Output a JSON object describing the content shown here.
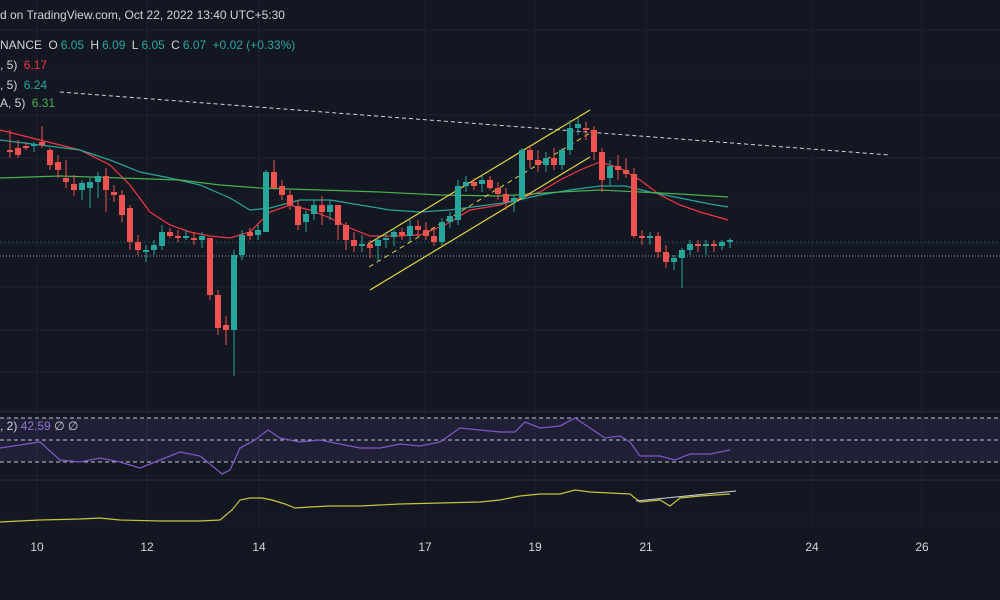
{
  "header": {
    "source": "d on TradingView.com, Oct 22, 2022 13:40 UTC+5:30",
    "symbol_tail": "NANCE",
    "o_label": "O",
    "o_value": "6.05",
    "h_label": "H",
    "h_value": "6.09",
    "l_label": "L",
    "l_value": "6.05",
    "c_label": "C",
    "c_value": "6.07",
    "change": "+0.02 (+0.33%)"
  },
  "indicators": [
    {
      "label": ", 5)",
      "value": "6.17",
      "color": "#f23645"
    },
    {
      "label": ", 5)",
      "value": "6.24",
      "color": "#26a69a"
    },
    {
      "label": "A, 5)",
      "value": "6.31",
      "color": "#4caf50"
    }
  ],
  "rsi_header": {
    "label": ", 2)",
    "value": "42.59",
    "extra1": "∅",
    "extra2": "∅"
  },
  "colors": {
    "background": "#131722",
    "up": "#26a69a",
    "down": "#ef5350",
    "ma_fast": "#f23645",
    "ma_mid": "#26a69a",
    "ma_slow": "#4caf50",
    "channel": "#e5d53b",
    "rsi_line": "#7e57c2",
    "lower_line": "#c9c33b"
  },
  "chart_data": {
    "type": "candlestick",
    "x_ticks": [
      "10",
      "12",
      "14",
      "17",
      "19",
      "21",
      "24",
      "26"
    ],
    "ohlc_last": {
      "open": 6.05,
      "high": 6.09,
      "low": 6.05,
      "close": 6.07
    },
    "moving_averages": [
      {
        "name": "MA 5 (red)",
        "last": 6.17
      },
      {
        "name": "MA 5 (teal)",
        "last": 6.24
      },
      {
        "name": "MA 5 (green)",
        "last": 6.31
      }
    ],
    "rsi_last": 42.59,
    "candles": [
      [
        10,
        150,
        130,
        158,
        150
      ],
      [
        18,
        148,
        140,
        158,
        155
      ],
      [
        26,
        146,
        142,
        150,
        148
      ],
      [
        34,
        146,
        142,
        152,
        144
      ],
      [
        42,
        142,
        126,
        148,
        145
      ],
      [
        50,
        150,
        148,
        170,
        165
      ],
      [
        58,
        162,
        155,
        178,
        170
      ],
      [
        66,
        178,
        160,
        188,
        182
      ],
      [
        74,
        184,
        175,
        196,
        190
      ],
      [
        82,
        190,
        180,
        200,
        183
      ],
      [
        90,
        188,
        178,
        208,
        182
      ],
      [
        98,
        182,
        172,
        198,
        176
      ],
      [
        106,
        176,
        168,
        212,
        190
      ],
      [
        114,
        192,
        185,
        202,
        195
      ],
      [
        122,
        195,
        190,
        222,
        215
      ],
      [
        130,
        208,
        205,
        250,
        242
      ],
      [
        138,
        242,
        235,
        255,
        250
      ],
      [
        146,
        252,
        245,
        262,
        250
      ],
      [
        154,
        250,
        240,
        255,
        245
      ],
      [
        162,
        246,
        225,
        250,
        232
      ],
      [
        170,
        232,
        228,
        238,
        236
      ],
      [
        178,
        236,
        230,
        242,
        238
      ],
      [
        186,
        238,
        230,
        240,
        236
      ],
      [
        194,
        238,
        232,
        245,
        240
      ],
      [
        202,
        240,
        232,
        248,
        236
      ],
      [
        210,
        238,
        250,
        300,
        295
      ],
      [
        218,
        295,
        290,
        335,
        328
      ],
      [
        226,
        325,
        316,
        345,
        330
      ],
      [
        234,
        330,
        250,
        376,
        255
      ],
      [
        242,
        255,
        230,
        260,
        235
      ],
      [
        250,
        232,
        228,
        240,
        236
      ],
      [
        258,
        235,
        225,
        240,
        230
      ],
      [
        266,
        232,
        170,
        232,
        172
      ],
      [
        274,
        172,
        160,
        190,
        188
      ],
      [
        282,
        186,
        180,
        200,
        195
      ],
      [
        290,
        195,
        190,
        210,
        205
      ],
      [
        298,
        206,
        200,
        230,
        225
      ],
      [
        306,
        222,
        210,
        232,
        214
      ],
      [
        314,
        214,
        200,
        220,
        205
      ],
      [
        322,
        205,
        196,
        225,
        212
      ],
      [
        330,
        212,
        200,
        220,
        205
      ],
      [
        338,
        205,
        205,
        240,
        225
      ],
      [
        346,
        225,
        222,
        250,
        240
      ],
      [
        354,
        240,
        232,
        252,
        246
      ],
      [
        362,
        246,
        235,
        252,
        244
      ],
      [
        370,
        244,
        240,
        258,
        248
      ],
      [
        378,
        246,
        236,
        262,
        240
      ],
      [
        386,
        240,
        232,
        248,
        238
      ],
      [
        394,
        237,
        228,
        246,
        232
      ],
      [
        402,
        232,
        228,
        240,
        235
      ],
      [
        410,
        236,
        220,
        242,
        226
      ],
      [
        418,
        226,
        220,
        236,
        230
      ],
      [
        426,
        230,
        222,
        240,
        236
      ],
      [
        434,
        236,
        228,
        246,
        242
      ],
      [
        442,
        242,
        218,
        246,
        222
      ],
      [
        450,
        222,
        212,
        228,
        216
      ],
      [
        458,
        220,
        180,
        225,
        186
      ],
      [
        466,
        186,
        176,
        192,
        182
      ],
      [
        474,
        182,
        178,
        190,
        186
      ],
      [
        482,
        184,
        176,
        192,
        180
      ],
      [
        490,
        180,
        176,
        190,
        188
      ],
      [
        498,
        188,
        182,
        200,
        194
      ],
      [
        506,
        194,
        188,
        210,
        202
      ],
      [
        514,
        202,
        195,
        212,
        198
      ],
      [
        522,
        198,
        148,
        200,
        150
      ],
      [
        530,
        150,
        145,
        168,
        160
      ],
      [
        538,
        160,
        150,
        172,
        165
      ],
      [
        546,
        165,
        152,
        172,
        158
      ],
      [
        554,
        158,
        148,
        170,
        165
      ],
      [
        562,
        165,
        148,
        170,
        150
      ],
      [
        570,
        150,
        120,
        155,
        128
      ],
      [
        578,
        128,
        118,
        135,
        124
      ],
      [
        586,
        128,
        122,
        140,
        130
      ],
      [
        594,
        130,
        126,
        160,
        152
      ],
      [
        602,
        152,
        148,
        192,
        180
      ],
      [
        610,
        178,
        160,
        185,
        166
      ],
      [
        618,
        166,
        155,
        180,
        170
      ],
      [
        626,
        170,
        158,
        178,
        174
      ],
      [
        634,
        174,
        168,
        238,
        236
      ],
      [
        642,
        236,
        230,
        245,
        238
      ],
      [
        650,
        238,
        232,
        245,
        236
      ],
      [
        658,
        236,
        232,
        258,
        252
      ],
      [
        666,
        252,
        245,
        268,
        262
      ],
      [
        674,
        262,
        255,
        270,
        258
      ],
      [
        682,
        258,
        248,
        288,
        250
      ],
      [
        690,
        250,
        240,
        255,
        244
      ],
      [
        698,
        244,
        240,
        252,
        246
      ],
      [
        706,
        246,
        240,
        255,
        244
      ],
      [
        714,
        244,
        240,
        252,
        246
      ],
      [
        722,
        246,
        240,
        250,
        242
      ],
      [
        730,
        242,
        238,
        248,
        240
      ]
    ]
  }
}
